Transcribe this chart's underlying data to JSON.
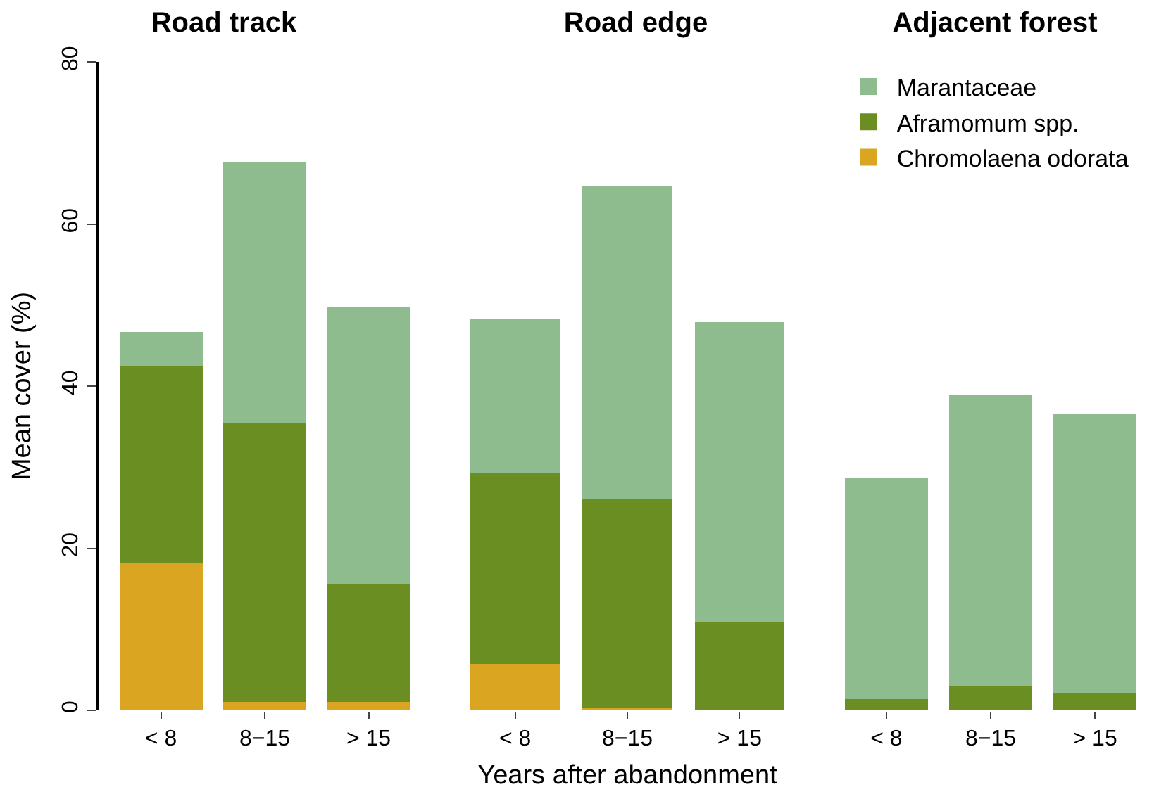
{
  "chart_data": [
    {
      "type": "bar",
      "title": "Road track",
      "ylabel": "Mean cover (%)",
      "categories": [
        "< 8",
        "8−15",
        "> 15"
      ],
      "stacked": true,
      "ylim": [
        0,
        80
      ],
      "yticks": [
        0,
        20,
        40,
        60,
        80
      ],
      "grid": false,
      "legend": false,
      "series": [
        {
          "color": "#daa520",
          "values": [
            18.2,
            1.0,
            1.0
          ]
        },
        {
          "color": "#6b8e23",
          "values": [
            24.3,
            34.4,
            14.6
          ]
        },
        {
          "color": "#8fbc8f",
          "values": [
            4.2,
            32.3,
            34.1
          ]
        }
      ]
    },
    {
      "type": "bar",
      "title": "Road edge",
      "xlabel": "Years after abandonment",
      "categories": [
        "< 8",
        "8−15",
        "> 15"
      ],
      "stacked": true,
      "ylim": [
        0,
        80
      ],
      "yticks": [
        0,
        20,
        40,
        60,
        80
      ],
      "tick_labels": "x",
      "grid": false,
      "legend": false,
      "series": [
        {
          "color": "#daa520",
          "values": [
            5.7,
            0.3,
            0
          ]
        },
        {
          "color": "#6b8e23",
          "values": [
            23.6,
            25.7,
            10.9
          ]
        },
        {
          "color": "#8fbc8f",
          "values": [
            19.0,
            38.6,
            37.0
          ]
        }
      ]
    },
    {
      "type": "bar",
      "title": "Adjacent forest",
      "categories": [
        "< 8",
        "8−15",
        "> 15"
      ],
      "stacked": true,
      "ylim": [
        0,
        80
      ],
      "yticks": [
        0,
        20,
        40,
        60,
        80
      ],
      "tick_labels": "x",
      "grid": false,
      "legend": "top",
      "series": [
        {
          "name": "Chromolaena odorata",
          "color": "#daa520",
          "values": [
            0,
            0,
            0
          ]
        },
        {
          "name": "Aframomum spp.",
          "color": "#6b8e23",
          "values": [
            1.4,
            3.0,
            2.1
          ]
        },
        {
          "name": "Marantaceae",
          "color": "#8fbc8f",
          "values": [
            27.2,
            35.9,
            34.5
          ]
        }
      ]
    }
  ]
}
